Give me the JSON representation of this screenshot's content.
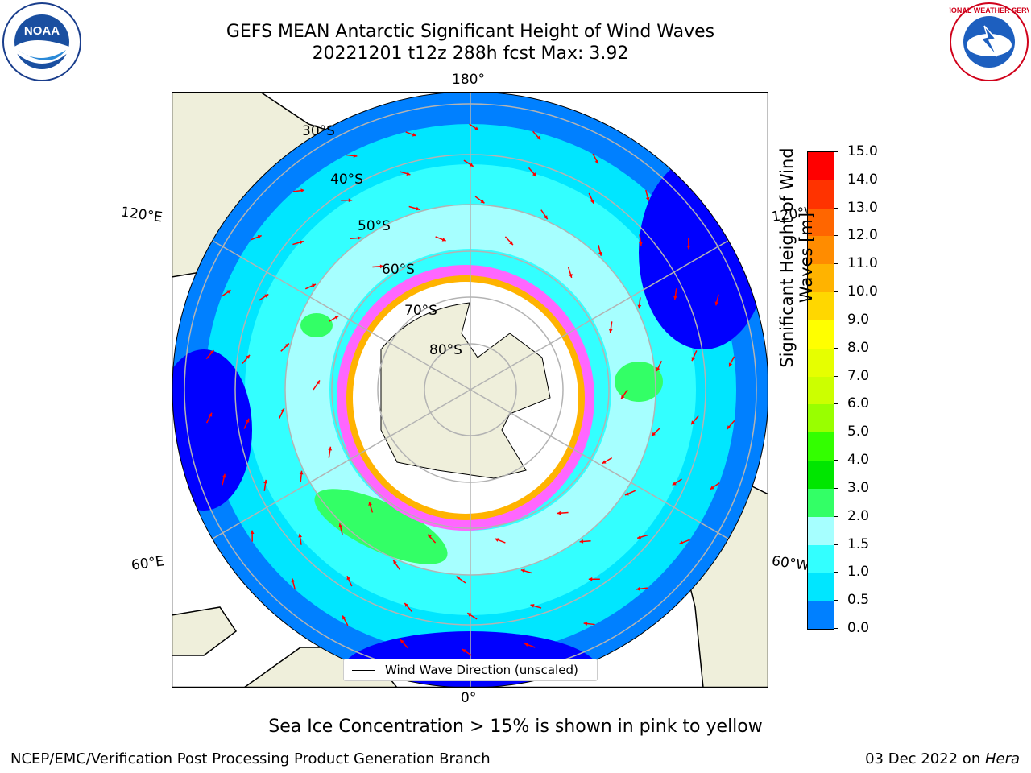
{
  "header": {
    "title_line1": "GEFS MEAN Antarctic Significant Height of Wind Waves",
    "title_line2": "20221201 t12z 288h fcst   Max: 3.92"
  },
  "logos": {
    "left": "NOAA",
    "right": "NATIONAL WEATHER SERVICE"
  },
  "map": {
    "longitude_labels": {
      "top": "180°",
      "bottom": "0°",
      "upper_left": "120°E",
      "upper_right": "120°W",
      "lower_left": "60°E",
      "lower_right": "60°W"
    },
    "latitude_labels": [
      "30°S",
      "40°S",
      "50°S",
      "60°S",
      "70°S",
      "80°S"
    ],
    "legend_label": "Wind Wave Direction (unscaled)"
  },
  "colorbar": {
    "title_line1": "Significant Height of Wind",
    "title_line2": "Waves [m]",
    "ticks": [
      "15.0",
      "14.0",
      "13.0",
      "12.0",
      "11.0",
      "10.0",
      "9.0",
      "8.0",
      "7.0",
      "6.0",
      "5.0",
      "4.0",
      "3.0",
      "2.0",
      "1.5",
      "1.0",
      "0.5",
      "0.0"
    ],
    "colors": [
      "#ff0000",
      "#ff3300",
      "#ff6600",
      "#ff8c00",
      "#ffb300",
      "#ffd700",
      "#ffff00",
      "#e6ff00",
      "#ccff00",
      "#99ff00",
      "#33ff00",
      "#00e600",
      "#33ff66",
      "#a6ffff",
      "#33ffff",
      "#00e6ff",
      "#0080ff",
      "#0000ff"
    ]
  },
  "note": "Sea Ice Concentration > 15% is shown in pink to yellow",
  "footer": {
    "left": "NCEP/EMC/Verification Post Processing Product Generation Branch",
    "right_date": "03 Dec 2022 on ",
    "right_host": "Hera"
  }
}
